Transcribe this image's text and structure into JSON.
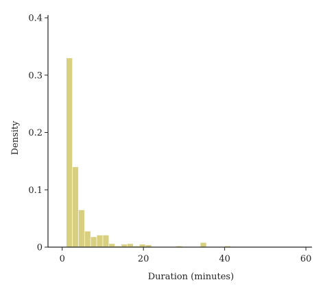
{
  "chart_data": {
    "type": "bar",
    "title": "",
    "xlabel": "Duration (minutes)",
    "ylabel": "Density",
    "xlim": [
      0,
      62
    ],
    "ylim": [
      0,
      0.4
    ],
    "bin_width": 1.5,
    "xticks": [
      0,
      20,
      40,
      60
    ],
    "xtick_labels": [
      "0",
      "20",
      "40",
      "60"
    ],
    "yticks": [
      0,
      0.1,
      0.2,
      0.3,
      0.4
    ],
    "ytick_labels": [
      "0",
      "0.1",
      "0.2",
      "0.3",
      "0.4"
    ],
    "bar_color": "#d8cf80",
    "grid": false,
    "bins": [
      {
        "start": 1.0,
        "density": 0.33
      },
      {
        "start": 2.5,
        "density": 0.14
      },
      {
        "start": 4.0,
        "density": 0.065
      },
      {
        "start": 5.5,
        "density": 0.028
      },
      {
        "start": 7.0,
        "density": 0.018
      },
      {
        "start": 8.5,
        "density": 0.021
      },
      {
        "start": 10.0,
        "density": 0.021
      },
      {
        "start": 11.5,
        "density": 0.006
      },
      {
        "start": 13.0,
        "density": 0.002
      },
      {
        "start": 14.5,
        "density": 0.005
      },
      {
        "start": 16.0,
        "density": 0.006
      },
      {
        "start": 17.5,
        "density": 0.002
      },
      {
        "start": 19.0,
        "density": 0.005
      },
      {
        "start": 20.5,
        "density": 0.004
      },
      {
        "start": 22.0,
        "density": 0.001
      },
      {
        "start": 23.5,
        "density": 0.001
      },
      {
        "start": 25.0,
        "density": 0.001
      },
      {
        "start": 28.0,
        "density": 0.002
      },
      {
        "start": 31.0,
        "density": 0.001
      },
      {
        "start": 34.0,
        "density": 0.008
      },
      {
        "start": 38.5,
        "density": 0.001
      },
      {
        "start": 40.0,
        "density": 0.002
      },
      {
        "start": 49.0,
        "density": 0.001
      },
      {
        "start": 58.0,
        "density": 0.001
      }
    ]
  }
}
